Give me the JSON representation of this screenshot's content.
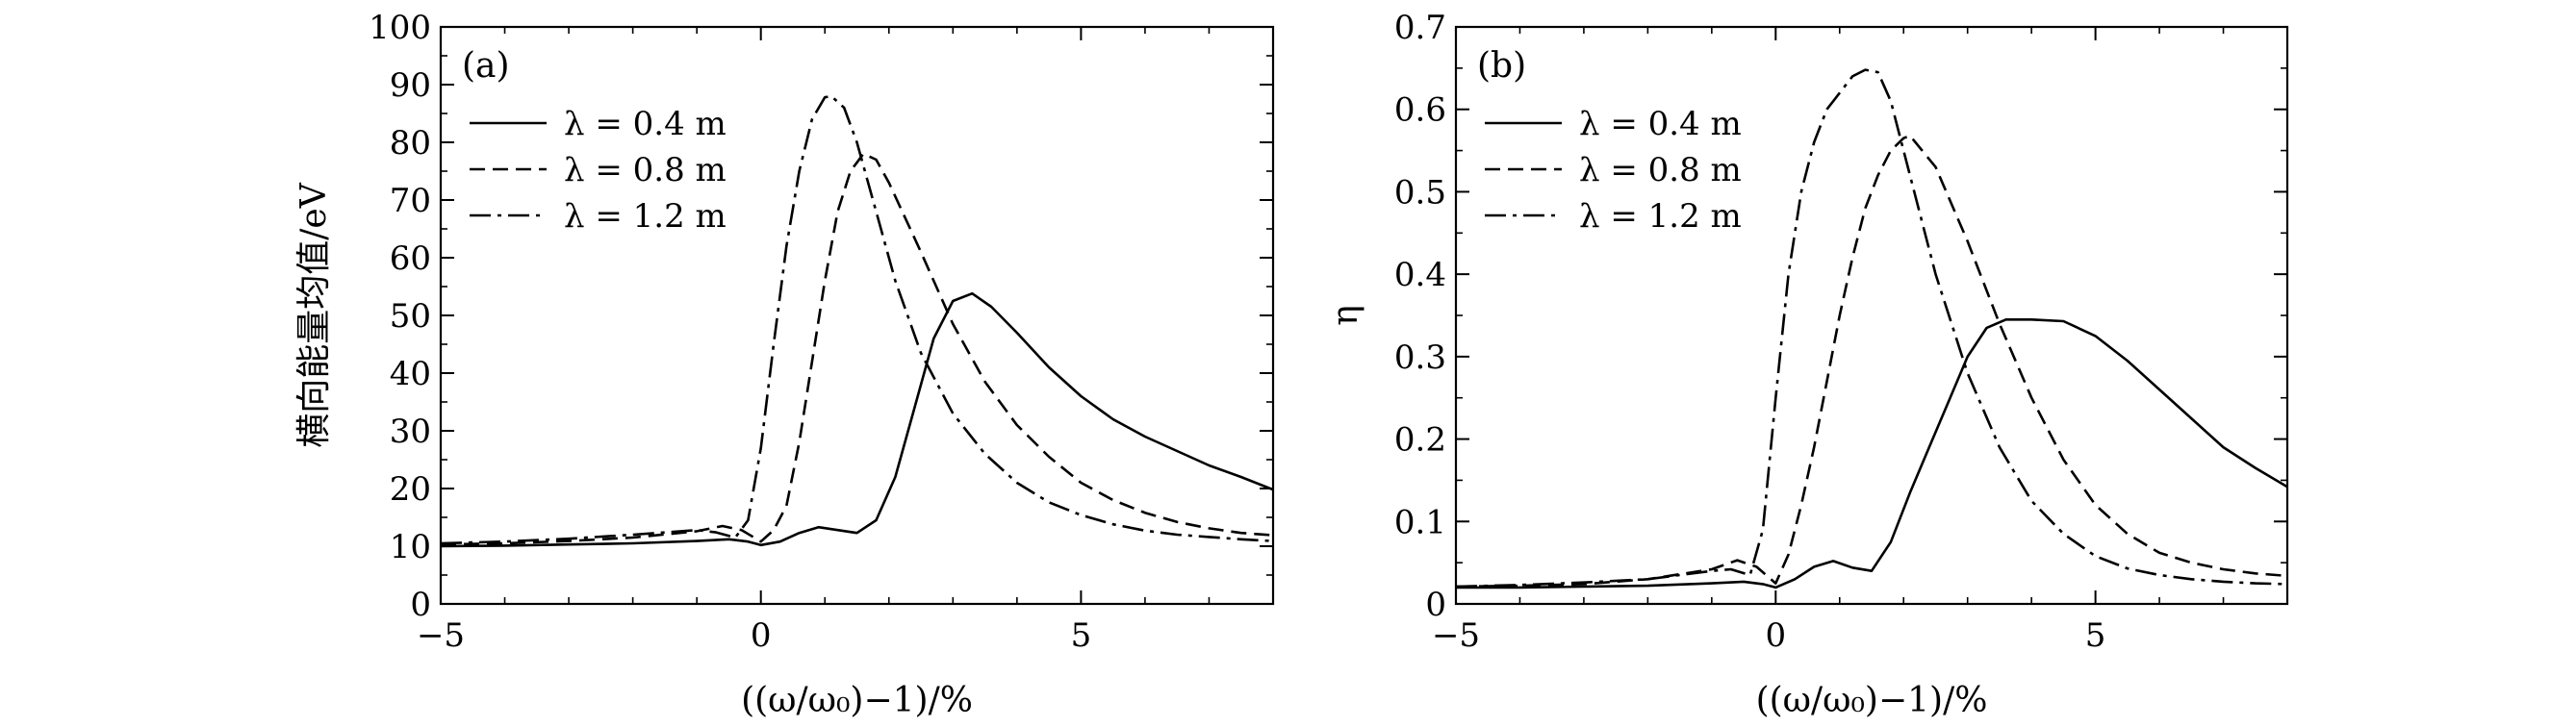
{
  "chart_data": [
    {
      "type": "line",
      "panel_label": "(a)",
      "xlabel": "((ω/ω₀)−1)/%",
      "ylabel": "横向能量均值/eV",
      "xlim": [
        -5,
        8
      ],
      "ylim": [
        0,
        100
      ],
      "xticks": [
        -5,
        0,
        5
      ],
      "xtick_labels": [
        "−5",
        "0",
        "5"
      ],
      "yticks": [
        0,
        10,
        20,
        30,
        40,
        50,
        60,
        70,
        80,
        90,
        100
      ],
      "ytick_labels": [
        "0",
        "10",
        "20",
        "30",
        "40",
        "50",
        "60",
        "70",
        "80",
        "90",
        "100"
      ],
      "legend_position": "upper-left",
      "grid": false,
      "series": [
        {
          "name": "λ = 0.4 m",
          "style": "solid",
          "x": [
            -5,
            -4,
            -3,
            -2,
            -1,
            -0.5,
            -0.2,
            0,
            0.3,
            0.6,
            0.9,
            1.2,
            1.5,
            1.8,
            2.1,
            2.4,
            2.7,
            3.0,
            3.3,
            3.6,
            4,
            4.5,
            5,
            5.5,
            6,
            6.5,
            7,
            7.5,
            8
          ],
          "y": [
            10.0,
            10.1,
            10.3,
            10.5,
            10.9,
            11.2,
            10.8,
            10.2,
            10.8,
            12.3,
            13.3,
            12.8,
            12.3,
            14.5,
            22,
            34,
            46,
            52.5,
            53.8,
            51.5,
            47,
            41,
            36,
            32,
            29,
            26.5,
            24,
            22,
            19.8
          ]
        },
        {
          "name": "λ = 0.8 m",
          "style": "dashed",
          "x": [
            -5,
            -4,
            -3,
            -2,
            -1,
            -0.6,
            -0.3,
            0,
            0.2,
            0.4,
            0.6,
            0.8,
            1.0,
            1.2,
            1.4,
            1.6,
            1.8,
            2.0,
            2.5,
            3,
            3.5,
            4,
            4.5,
            5,
            5.5,
            6,
            6.5,
            7,
            7.5,
            8
          ],
          "y": [
            10.3,
            10.5,
            10.9,
            11.5,
            12.6,
            13.5,
            12.8,
            10.8,
            12.8,
            17,
            28,
            42,
            56,
            68,
            75,
            78,
            77,
            73,
            61,
            48.5,
            38.5,
            31,
            25.5,
            21,
            18,
            15.8,
            14.2,
            13.1,
            12.3,
            11.9
          ]
        },
        {
          "name": "λ = 1.2 m",
          "style": "dashdot",
          "x": [
            -5,
            -4,
            -3,
            -2,
            -1,
            -0.7,
            -0.4,
            -0.2,
            0,
            0.2,
            0.4,
            0.6,
            0.8,
            1.0,
            1.1,
            1.3,
            1.5,
            1.8,
            2.1,
            2.5,
            3,
            3.5,
            4,
            4.5,
            5,
            5.5,
            6,
            6.5,
            7,
            7.5,
            8
          ],
          "y": [
            10.5,
            10.8,
            11.3,
            12.0,
            12.8,
            12.4,
            11.5,
            14.5,
            27,
            45,
            62,
            75,
            84,
            87.8,
            88.0,
            86,
            80,
            68,
            56,
            43.5,
            33,
            26,
            21,
            17.6,
            15.4,
            13.8,
            12.7,
            12.0,
            11.6,
            11.2,
            10.9
          ]
        }
      ]
    },
    {
      "type": "line",
      "panel_label": "(b)",
      "xlabel": "((ω/ω₀)−1)/%",
      "ylabel": "η",
      "xlim": [
        -5,
        8
      ],
      "ylim": [
        0,
        0.7
      ],
      "xticks": [
        -5,
        0,
        5
      ],
      "xtick_labels": [
        "−5",
        "0",
        "5"
      ],
      "yticks": [
        0,
        0.1,
        0.2,
        0.3,
        0.4,
        0.5,
        0.6,
        0.7
      ],
      "ytick_labels": [
        "0",
        "0.1",
        "0.2",
        "0.3",
        "0.4",
        "0.5",
        "0.6",
        "0.7"
      ],
      "legend_position": "upper-left",
      "grid": false,
      "series": [
        {
          "name": "λ = 0.4 m",
          "style": "solid",
          "x": [
            -5,
            -4,
            -3,
            -2,
            -1,
            -0.5,
            -0.2,
            0,
            0.3,
            0.6,
            0.9,
            1.2,
            1.5,
            1.8,
            2.1,
            2.4,
            2.7,
            3.0,
            3.3,
            3.6,
            4,
            4.5,
            5,
            5.5,
            6,
            6.5,
            7,
            7.5,
            8
          ],
          "y": [
            0.02,
            0.02,
            0.021,
            0.022,
            0.025,
            0.027,
            0.024,
            0.02,
            0.03,
            0.045,
            0.052,
            0.044,
            0.04,
            0.075,
            0.135,
            0.19,
            0.245,
            0.3,
            0.335,
            0.345,
            0.345,
            0.343,
            0.325,
            0.295,
            0.26,
            0.225,
            0.19,
            0.165,
            0.142
          ]
        },
        {
          "name": "λ = 0.8 m",
          "style": "dashed",
          "x": [
            -5,
            -4,
            -3,
            -2,
            -1,
            -0.6,
            -0.3,
            0,
            0.2,
            0.4,
            0.6,
            0.8,
            1.0,
            1.2,
            1.4,
            1.6,
            1.8,
            2.0,
            2.1,
            2.5,
            3,
            3.5,
            4,
            4.5,
            5,
            5.5,
            6,
            6.5,
            7,
            7.5,
            8
          ],
          "y": [
            0.021,
            0.022,
            0.024,
            0.03,
            0.042,
            0.053,
            0.045,
            0.025,
            0.06,
            0.12,
            0.19,
            0.27,
            0.35,
            0.42,
            0.48,
            0.52,
            0.55,
            0.565,
            0.568,
            0.53,
            0.44,
            0.34,
            0.25,
            0.175,
            0.12,
            0.085,
            0.062,
            0.05,
            0.042,
            0.037,
            0.034
          ]
        },
        {
          "name": "λ = 1.2 m",
          "style": "dashdot",
          "x": [
            -5,
            -4,
            -3,
            -2,
            -1,
            -0.7,
            -0.4,
            -0.2,
            0,
            0.2,
            0.4,
            0.6,
            0.8,
            1.0,
            1.2,
            1.4,
            1.6,
            1.8,
            2.0,
            2.5,
            3,
            3.5,
            4,
            4.5,
            5,
            5.5,
            6,
            6.5,
            7,
            7.5,
            8
          ],
          "y": [
            0.021,
            0.023,
            0.026,
            0.03,
            0.04,
            0.042,
            0.035,
            0.09,
            0.25,
            0.4,
            0.5,
            0.56,
            0.6,
            0.62,
            0.64,
            0.648,
            0.645,
            0.61,
            0.55,
            0.4,
            0.28,
            0.19,
            0.125,
            0.085,
            0.058,
            0.043,
            0.035,
            0.03,
            0.027,
            0.025,
            0.024
          ]
        }
      ]
    }
  ]
}
